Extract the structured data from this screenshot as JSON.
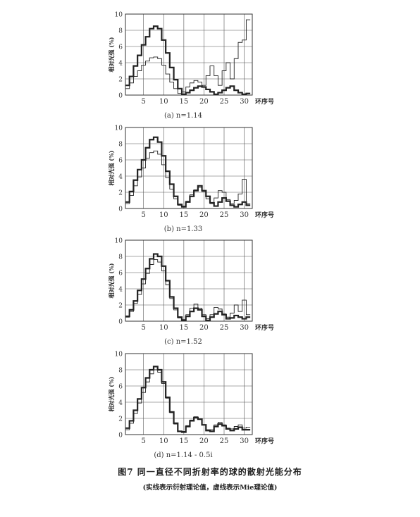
{
  "figure": {
    "title": "图7 同一直径不同折射率的球的散射光能分布",
    "note": "(实线表示衍射理论值，虚线表示Mie理论值)"
  },
  "chart_data": [
    {
      "type": "line",
      "label": "(a)  n=1.14",
      "xlabel": "环序号",
      "ylabel": "相对光强 (%)",
      "xticks": [
        5,
        10,
        15,
        20,
        25,
        30
      ],
      "yticks": [
        0,
        2,
        4,
        6,
        8,
        10
      ],
      "xlim": [
        0.5,
        32
      ],
      "ylim": [
        0,
        10
      ],
      "grid": true,
      "series": [
        {
          "style": "bold",
          "values": [
            1.2,
            2.3,
            3.6,
            4.9,
            6.2,
            7.2,
            8.2,
            8.5,
            8.2,
            6.8,
            5.2,
            3.4,
            1.9,
            0.8,
            0.1,
            0.3,
            0.6,
            0.9,
            1.1,
            1.0,
            0.7,
            0.4,
            0.1,
            0.3,
            0.6,
            0.9,
            1.1,
            0.6,
            0.3,
            0.1,
            0.2
          ]
        },
        {
          "style": "thin",
          "values": [
            0.8,
            1.5,
            2.3,
            3.0,
            3.7,
            4.2,
            4.6,
            4.7,
            4.5,
            3.7,
            2.6,
            1.6,
            0.8,
            0.2,
            0.4,
            1.0,
            1.5,
            1.8,
            1.6,
            1.2,
            2.4,
            3.6,
            2.4,
            1.2,
            3.0,
            4.0,
            2.0,
            4.5,
            6.5,
            6.8,
            9.3
          ]
        }
      ]
    },
    {
      "type": "line",
      "label": "(b)  n=1.33",
      "xlabel": "环序号",
      "ylabel": "相对光强 (%)",
      "xticks": [
        5,
        10,
        15,
        20,
        25,
        30
      ],
      "yticks": [
        0,
        2,
        4,
        6,
        8,
        10
      ],
      "xlim": [
        0.5,
        32
      ],
      "ylim": [
        0,
        10
      ],
      "grid": true,
      "series": [
        {
          "style": "bold",
          "values": [
            0.8,
            2.1,
            3.5,
            4.8,
            6.0,
            7.5,
            8.5,
            8.8,
            8.2,
            6.5,
            4.6,
            3.0,
            1.5,
            0.5,
            0.2,
            0.8,
            1.5,
            2.2,
            2.8,
            2.2,
            1.5,
            0.7,
            0.3,
            0.8,
            1.3,
            0.9,
            0.4,
            0.2,
            0.5,
            0.8,
            0.4
          ]
        },
        {
          "style": "thin",
          "values": [
            0.6,
            1.6,
            2.8,
            3.9,
            5.0,
            6.2,
            6.9,
            7.1,
            6.7,
            5.4,
            3.8,
            2.4,
            1.2,
            0.4,
            0.3,
            0.9,
            1.7,
            2.3,
            2.6,
            2.1,
            1.2,
            0.6,
            1.3,
            2.2,
            2.0,
            1.1,
            0.6,
            1.0,
            1.8,
            3.6,
            0.6
          ]
        }
      ]
    },
    {
      "type": "line",
      "label": "(c)  n=1.52",
      "xlabel": "环序号",
      "ylabel": "相对光强 (%)",
      "xticks": [
        5,
        10,
        15,
        20,
        25,
        30
      ],
      "yticks": [
        0,
        2,
        4,
        6,
        8,
        10
      ],
      "xlim": [
        0.5,
        32
      ],
      "ylim": [
        0,
        10
      ],
      "grid": true,
      "series": [
        {
          "style": "bold",
          "values": [
            0.6,
            1.4,
            2.5,
            3.8,
            5.2,
            6.5,
            7.7,
            8.3,
            8.0,
            6.8,
            5.0,
            3.0,
            1.6,
            0.5,
            0.1,
            0.6,
            1.2,
            1.6,
            1.4,
            0.6,
            0.1,
            0.5,
            0.9,
            1.2,
            0.8,
            0.3,
            0.4,
            0.7,
            0.5,
            0.3,
            0.5
          ]
        },
        {
          "style": "thin",
          "values": [
            0.5,
            1.2,
            2.2,
            3.3,
            4.6,
            5.9,
            7.0,
            7.6,
            7.3,
            6.2,
            4.5,
            2.8,
            1.4,
            0.4,
            0.2,
            0.8,
            1.6,
            2.1,
            1.6,
            0.8,
            0.3,
            0.8,
            1.7,
            1.5,
            0.9,
            0.5,
            1.0,
            2.0,
            1.2,
            2.6,
            0.8
          ]
        }
      ]
    },
    {
      "type": "line",
      "label": "(d)  n=1.14 - 0.5i",
      "xlabel": "环序号",
      "ylabel": "相对光强 (%)",
      "xticks": [
        5,
        10,
        15,
        20,
        25,
        30
      ],
      "yticks": [
        0,
        2,
        4,
        6,
        8,
        10
      ],
      "xlim": [
        0.5,
        32
      ],
      "ylim": [
        0,
        10
      ],
      "grid": true,
      "series": [
        {
          "style": "bold",
          "values": [
            0.8,
            1.7,
            3.0,
            4.4,
            5.8,
            7.0,
            8.0,
            8.4,
            8.0,
            6.5,
            4.6,
            2.8,
            1.4,
            0.4,
            0.3,
            1.0,
            1.7,
            2.1,
            1.9,
            1.2,
            0.5,
            0.4,
            1.0,
            1.3,
            1.1,
            0.7,
            0.5,
            0.7,
            0.9,
            0.6,
            0.6
          ]
        },
        {
          "style": "thin",
          "values": [
            0.6,
            1.4,
            2.6,
            3.9,
            5.2,
            6.5,
            7.5,
            8.0,
            7.7,
            6.3,
            4.5,
            2.7,
            1.3,
            0.4,
            0.4,
            1.1,
            1.8,
            2.2,
            1.9,
            1.2,
            0.6,
            0.6,
            1.2,
            1.5,
            1.2,
            0.8,
            0.7,
            1.0,
            1.2,
            0.8,
            0.9
          ]
        }
      ]
    }
  ]
}
